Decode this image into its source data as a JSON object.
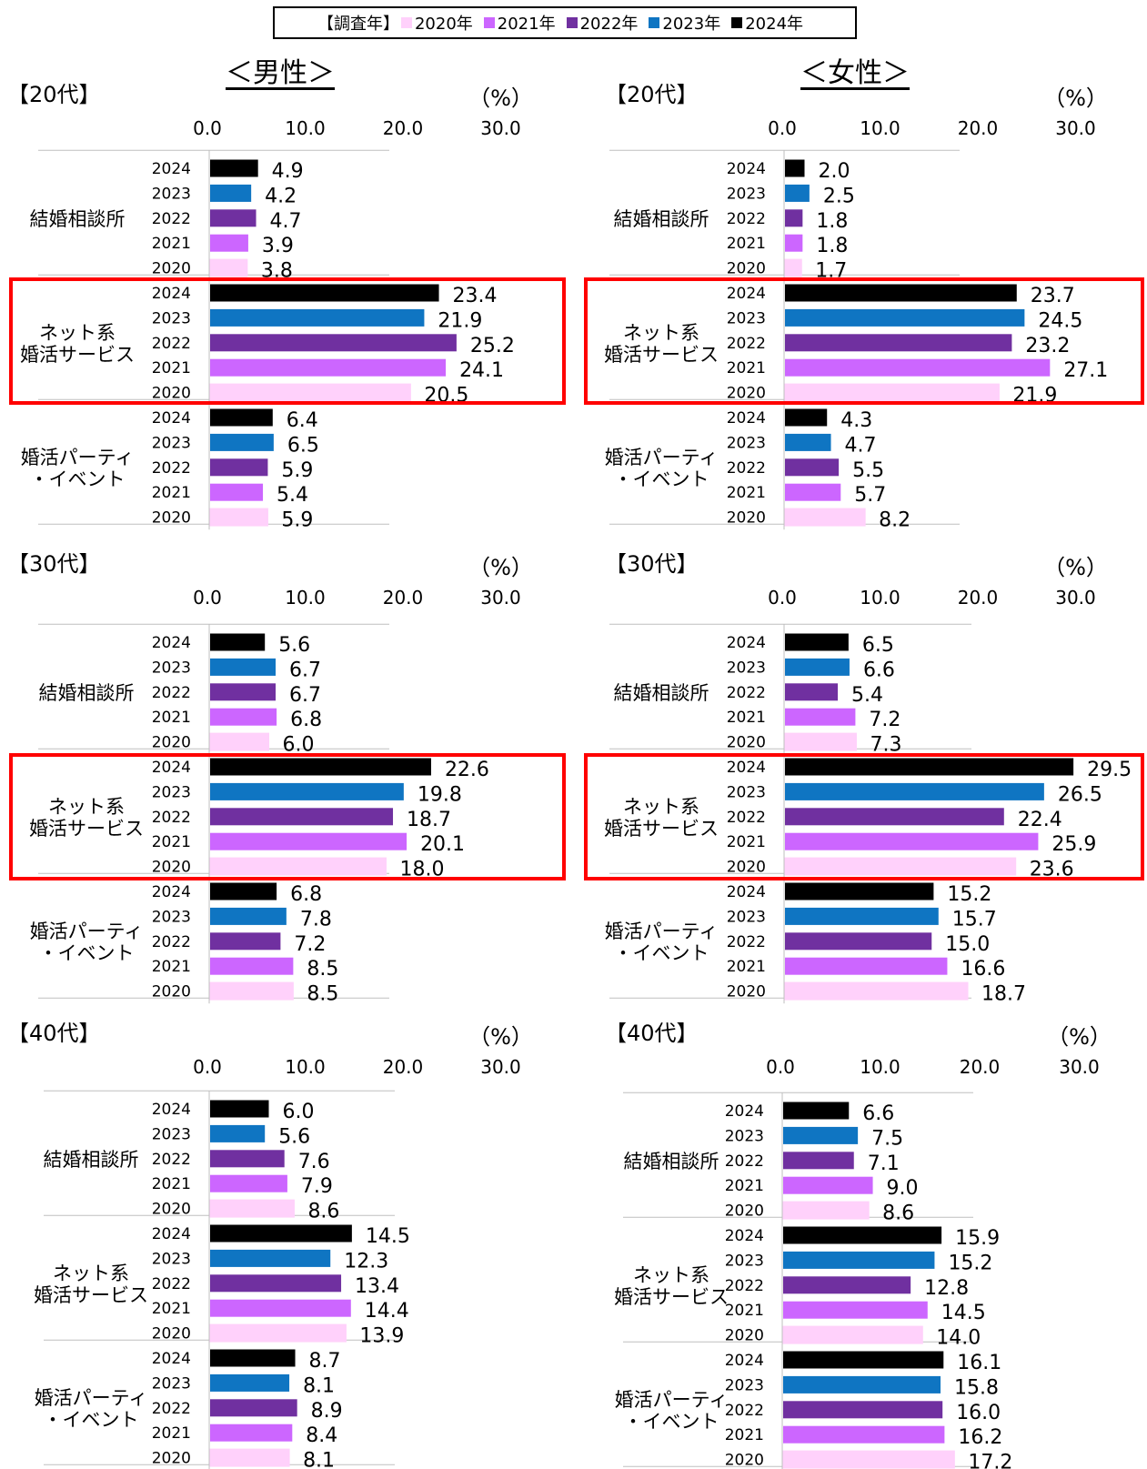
{
  "legend": {
    "title": "【調査年】",
    "items": [
      {
        "label": "2020年",
        "color": "#ffd1fb"
      },
      {
        "label": "2021年",
        "color": "#cc66ff"
      },
      {
        "label": "2022年",
        "color": "#7030a0"
      },
      {
        "label": "2023年",
        "color": "#0f75c2"
      },
      {
        "label": "2024年",
        "color": "#000000"
      }
    ]
  },
  "columns": {
    "male": "＜男性＞",
    "female": "＜女性＞"
  },
  "unit": "（%）",
  "chart_data": {
    "type": "bar",
    "orientation": "horizontal",
    "ticks": [
      "0.0",
      "10.0",
      "20.0",
      "30.0"
    ],
    "xlim": [
      0,
      30
    ],
    "series_years": [
      "2024",
      "2023",
      "2022",
      "2021",
      "2020"
    ],
    "series_colors": [
      "#000000",
      "#0f75c2",
      "#7030a0",
      "#cc66ff",
      "#ffd1fb"
    ],
    "panels": [
      {
        "id": "m20",
        "gender": "male",
        "age": "【20代】",
        "highlight_category": 1,
        "categories": [
          {
            "label": [
              "結婚相談所"
            ],
            "values": [
              4.9,
              4.2,
              4.7,
              3.9,
              3.8
            ]
          },
          {
            "label": [
              "ネット系",
              "婚活サービス"
            ],
            "values": [
              23.4,
              21.9,
              25.2,
              24.1,
              20.5
            ]
          },
          {
            "label": [
              "婚活パーティ",
              "・イベント"
            ],
            "values": [
              6.4,
              6.5,
              5.9,
              5.4,
              5.9
            ]
          }
        ]
      },
      {
        "id": "f20",
        "gender": "female",
        "age": "【20代】",
        "highlight_category": 1,
        "categories": [
          {
            "label": [
              "結婚相談所"
            ],
            "values": [
              2.0,
              2.5,
              1.8,
              1.8,
              1.7
            ]
          },
          {
            "label": [
              "ネット系",
              "婚活サービス"
            ],
            "values": [
              23.7,
              24.5,
              23.2,
              27.1,
              21.9
            ]
          },
          {
            "label": [
              "婚活パーティ",
              "・イベント"
            ],
            "values": [
              4.3,
              4.7,
              5.5,
              5.7,
              8.2
            ]
          }
        ]
      },
      {
        "id": "m30",
        "gender": "male",
        "age": "【30代】",
        "highlight_category": 1,
        "categories": [
          {
            "label": [
              "結婚相談所"
            ],
            "values": [
              5.6,
              6.7,
              6.7,
              6.8,
              6.0
            ]
          },
          {
            "label": [
              "ネット系",
              "婚活サービス"
            ],
            "values": [
              22.6,
              19.8,
              18.7,
              20.1,
              18.0
            ]
          },
          {
            "label": [
              "婚活パーティ",
              "・イベント"
            ],
            "values": [
              6.8,
              7.8,
              7.2,
              8.5,
              8.5
            ]
          }
        ]
      },
      {
        "id": "f30",
        "gender": "female",
        "age": "【30代】",
        "highlight_category": 1,
        "categories": [
          {
            "label": [
              "結婚相談所"
            ],
            "values": [
              6.5,
              6.6,
              5.4,
              7.2,
              7.3
            ]
          },
          {
            "label": [
              "ネット系",
              "婚活サービス"
            ],
            "values": [
              29.5,
              26.5,
              22.4,
              25.9,
              23.6
            ]
          },
          {
            "label": [
              "婚活パーティ",
              "・イベント"
            ],
            "values": [
              15.2,
              15.7,
              15.0,
              16.6,
              18.7
            ]
          }
        ]
      },
      {
        "id": "m40",
        "gender": "male",
        "age": "【40代】",
        "highlight_category": null,
        "categories": [
          {
            "label": [
              "結婚相談所"
            ],
            "values": [
              6.0,
              5.6,
              7.6,
              7.9,
              8.6
            ]
          },
          {
            "label": [
              "ネット系",
              "婚活サービス"
            ],
            "values": [
              14.5,
              12.3,
              13.4,
              14.4,
              13.9
            ]
          },
          {
            "label": [
              "婚活パーティ",
              "・イベント"
            ],
            "values": [
              8.7,
              8.1,
              8.9,
              8.4,
              8.1
            ]
          }
        ]
      },
      {
        "id": "f40",
        "gender": "female",
        "age": "【40代】",
        "highlight_category": null,
        "categories": [
          {
            "label": [
              "結婚相談所"
            ],
            "values": [
              6.6,
              7.5,
              7.1,
              9.0,
              8.6
            ]
          },
          {
            "label": [
              "ネット系",
              "婚活サービス"
            ],
            "values": [
              15.9,
              15.2,
              12.8,
              14.5,
              14.0
            ]
          },
          {
            "label": [
              "婚活パーティ",
              "・イベント"
            ],
            "values": [
              16.1,
              15.8,
              16.0,
              16.2,
              17.2
            ]
          }
        ]
      }
    ]
  }
}
